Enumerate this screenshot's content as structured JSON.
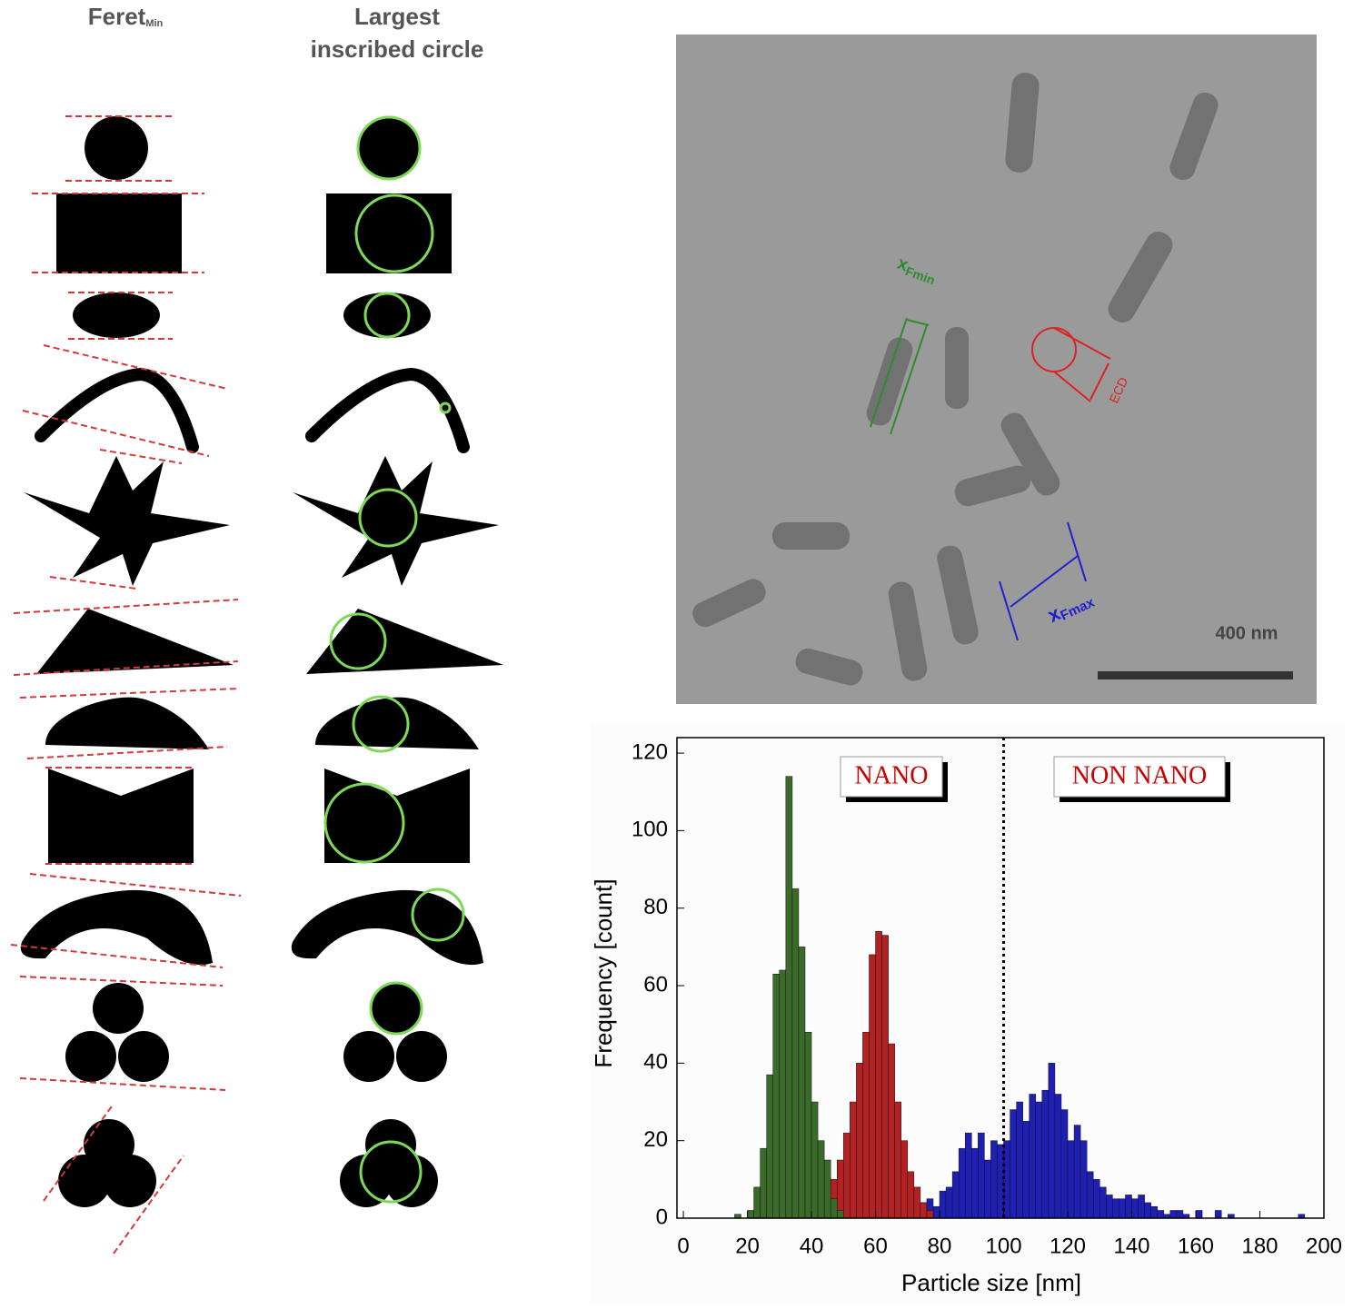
{
  "left_panel": {
    "feret_title": "Feret",
    "feret_sub": "Min",
    "circle_title_1": "Largest",
    "circle_title_2": "inscribed circle"
  },
  "tem_image": {
    "xfmin": "x",
    "xfmin_sub": "Fmin",
    "ecd": "ECD",
    "xfmax": "x",
    "xfmax_sub": "Fmax",
    "scale_bar": "400 nm"
  },
  "chart_data": {
    "type": "histogram",
    "x_label": "Particle size [nm]",
    "y_label": "Frequency [count]",
    "annotations": [
      "NANO",
      "NON NANO"
    ],
    "threshold": 100,
    "xlim": [
      -2,
      200
    ],
    "ylim": [
      0,
      124
    ],
    "xticks": [
      0,
      20,
      40,
      60,
      80,
      100,
      120,
      140,
      160,
      180,
      200
    ],
    "yticks": [
      0,
      20,
      40,
      60,
      80,
      100,
      120
    ],
    "bins": [
      14,
      16,
      18,
      20,
      22,
      24,
      26,
      28,
      30,
      32,
      34,
      36,
      38,
      40,
      42,
      44,
      46,
      48,
      50,
      52,
      54,
      56,
      58,
      60,
      62,
      64,
      66,
      68,
      70,
      72,
      74,
      76,
      78,
      80,
      82,
      84,
      86,
      88,
      90,
      92,
      94,
      96,
      98,
      100,
      102,
      104,
      106,
      108,
      110,
      112,
      114,
      116,
      118,
      120,
      122,
      124,
      126,
      128,
      130,
      132,
      134,
      136,
      138,
      140,
      142,
      144,
      146,
      148,
      150,
      152,
      154,
      156,
      158,
      160,
      162,
      164,
      166,
      168,
      170,
      172,
      174,
      176,
      178,
      180,
      182,
      184,
      186,
      188,
      190,
      192,
      194
    ],
    "series": [
      {
        "color": "#3b6b2a",
        "values": [
          0,
          1,
          0,
          2,
          8,
          18,
          37,
          63,
          64,
          114,
          85,
          70,
          48,
          30,
          20,
          15,
          5,
          2,
          0,
          0,
          0,
          0,
          0,
          0,
          0,
          0,
          0,
          0,
          0,
          0,
          0,
          0,
          0,
          0,
          0,
          0,
          0,
          0,
          0,
          0,
          0,
          0,
          0,
          0,
          0,
          0,
          0,
          0,
          0,
          0,
          0,
          0,
          0,
          0,
          0,
          0,
          0,
          0,
          0,
          0,
          0,
          0,
          0,
          0,
          0,
          0,
          0,
          0,
          0,
          0,
          0,
          0,
          0,
          0,
          0,
          0,
          0,
          0,
          0,
          0,
          0,
          0,
          0,
          0,
          0,
          0,
          0,
          0,
          0,
          0
        ]
      },
      {
        "color": "#b22222",
        "values": [
          0,
          0,
          0,
          0,
          0,
          0,
          0,
          0,
          0,
          0,
          0,
          0,
          0,
          0,
          2,
          5,
          10,
          15,
          22,
          30,
          40,
          48,
          68,
          74,
          73,
          45,
          30,
          20,
          12,
          8,
          4,
          2,
          0,
          0,
          0,
          0,
          0,
          0,
          0,
          0,
          0,
          0,
          0,
          0,
          0,
          0,
          0,
          0,
          0,
          0,
          0,
          0,
          0,
          0,
          0,
          0,
          0,
          0,
          0,
          0,
          0,
          0,
          0,
          0,
          0,
          0,
          0,
          0,
          0,
          0,
          0,
          0,
          0,
          0,
          0,
          0,
          0,
          0,
          0,
          0,
          0,
          0,
          0,
          0,
          0,
          0,
          0,
          0,
          0,
          0
        ]
      },
      {
        "color": "#1f1fb4",
        "values": [
          0,
          0,
          0,
          0,
          1,
          0,
          0,
          0,
          1,
          0,
          0,
          0,
          0,
          2,
          0,
          1,
          0,
          0,
          2,
          0,
          0,
          0,
          0,
          1,
          0,
          0,
          0,
          0,
          3,
          2,
          4,
          5,
          3,
          7,
          8,
          12,
          18,
          22,
          18,
          22,
          15,
          20,
          19,
          20,
          28,
          30,
          25,
          32,
          30,
          33,
          40,
          32,
          28,
          20,
          24,
          20,
          12,
          10,
          8,
          6,
          5,
          5,
          6,
          5,
          6,
          4,
          3,
          2,
          1,
          2,
          2,
          1,
          0,
          2,
          0,
          0,
          2,
          0,
          1,
          0,
          0,
          0,
          0,
          0,
          0,
          0,
          0,
          0,
          0,
          1
        ]
      }
    ]
  }
}
